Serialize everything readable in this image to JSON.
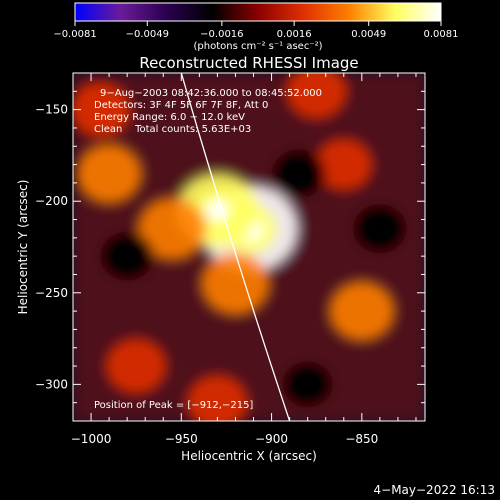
{
  "chart_data": {
    "type": "heatmap",
    "title": "Reconstructed RHESSI Image",
    "xlabel": "Heliocentric X (arcsec)",
    "ylabel": "Heliocentric Y (arcsec)",
    "xlim": [
      -1010,
      -815
    ],
    "ylim": [
      -320,
      -130
    ],
    "xticks": [
      -1000,
      -950,
      -900,
      -850
    ],
    "xtick_labels": [
      "−1000",
      "−950",
      "−900",
      "−850"
    ],
    "yticks": [
      -150,
      -200,
      -250,
      -300
    ],
    "ytick_labels": [
      "−150",
      "−200",
      "−250",
      "−300"
    ],
    "colorbar": {
      "min": -0.0081,
      "max": 0.0081,
      "ticks": [
        -0.0081,
        -0.0049,
        -0.0016,
        0.0016,
        0.0049,
        0.0081
      ],
      "tick_labels": [
        "−0.0081",
        "−0.0049",
        "−0.0016",
        "0.0016",
        "0.0049",
        "0.0081"
      ],
      "unit_label": "(photons cm⁻² s⁻¹ asec⁻²)",
      "stops": [
        "#0000ff",
        "#6a1b9a",
        "#2a0050",
        "#000000",
        "#8b0000",
        "#e03000",
        "#ff8000",
        "#ffff60",
        "#ffffff"
      ]
    },
    "annotations": [
      "9−Aug−2003 08:42:36.000 to 08:45:52.000",
      "Detectors: 3F 4F 5F 6F 7F 8F, Att 0",
      "Energy Range: 6.0 − 12.0 keV",
      "Clean    Total counts: 5.63E+03"
    ],
    "peak_label": "Position of Peak = [−912,−215]",
    "peak": [
      -912,
      -215
    ],
    "limb_curve": {
      "description": "solar limb",
      "points": [
        [
          -950,
          -130
        ],
        [
          -890,
          -320
        ]
      ]
    },
    "sources": [
      {
        "x": -912,
        "y": -215,
        "value": 0.0081
      },
      {
        "x": -930,
        "y": -205,
        "value": 0.006
      },
      {
        "x": -920,
        "y": -245,
        "value": 0.004
      },
      {
        "x": -955,
        "y": -215,
        "value": 0.004
      },
      {
        "x": -990,
        "y": -185,
        "value": 0.0035
      },
      {
        "x": -875,
        "y": -140,
        "value": 0.003
      },
      {
        "x": -850,
        "y": -260,
        "value": 0.0035
      },
      {
        "x": -975,
        "y": -290,
        "value": 0.003
      },
      {
        "x": -995,
        "y": -150,
        "value": 0.003
      },
      {
        "x": -930,
        "y": -310,
        "value": 0.003
      },
      {
        "x": -860,
        "y": -180,
        "value": 0.0025
      },
      {
        "x": -980,
        "y": -230,
        "value": -0.002
      },
      {
        "x": -840,
        "y": -215,
        "value": -0.002
      },
      {
        "x": -885,
        "y": -185,
        "value": -0.002
      },
      {
        "x": -880,
        "y": -300,
        "value": -0.0015
      }
    ]
  },
  "footer": {
    "date": "4−May−2022 16:13"
  }
}
